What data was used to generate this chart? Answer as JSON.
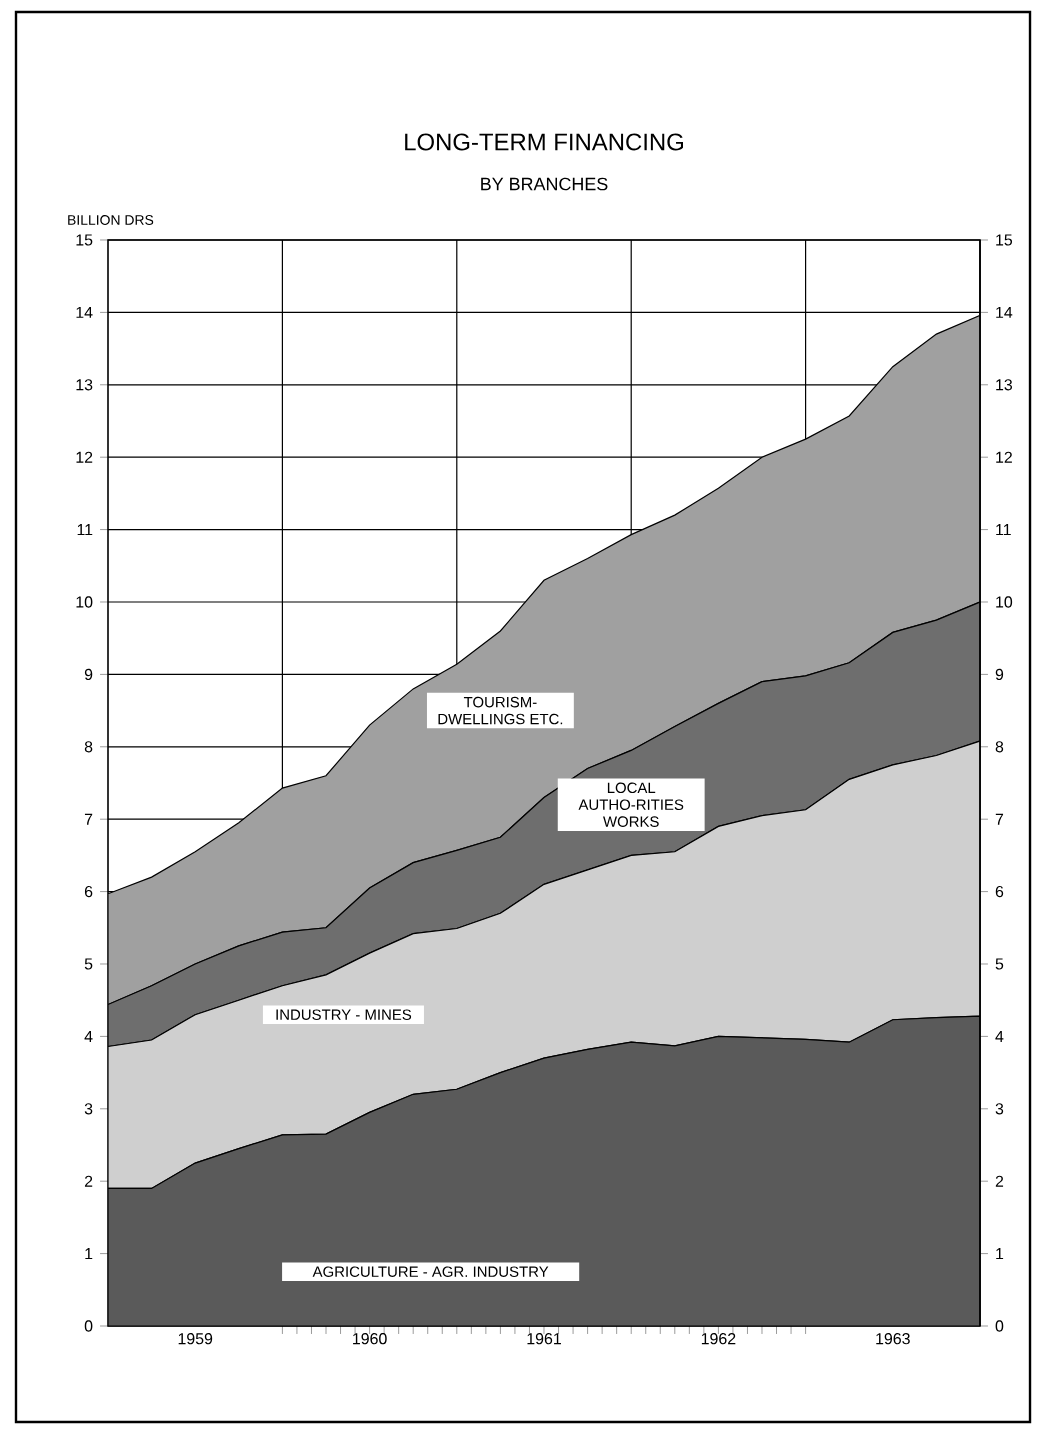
{
  "chart_data": {
    "type": "area",
    "title": "LONG-TERM FINANCING",
    "subtitle": "BY BRANCHES",
    "ylabel": "BILLION DRS",
    "stacked": true,
    "grid": true,
    "x": [
      1959.0,
      1959.25,
      1959.5,
      1959.75,
      1960.0,
      1960.25,
      1960.5,
      1960.75,
      1961.0,
      1961.25,
      1961.5,
      1961.75,
      1962.0,
      1962.25,
      1962.5,
      1962.75,
      1963.0,
      1963.25,
      1963.5,
      1963.75,
      1964.0
    ],
    "series": [
      {
        "name": "AGRICULTURE - AGR. INDUSTRY",
        "color": "#5a5a5a",
        "values": [
          1.9,
          1.9,
          2.25,
          2.45,
          2.64,
          2.65,
          2.95,
          3.2,
          3.27,
          3.5,
          3.7,
          3.82,
          3.92,
          3.87,
          4.0,
          3.98,
          3.96,
          3.92,
          4.23,
          4.26,
          4.28
        ]
      },
      {
        "name": "INDUSTRY - MINES",
        "color": "#cfcfcf",
        "values": [
          1.96,
          2.05,
          2.05,
          2.05,
          2.06,
          2.2,
          2.2,
          2.22,
          2.22,
          2.2,
          2.4,
          2.48,
          2.58,
          2.68,
          2.9,
          3.07,
          3.17,
          3.63,
          3.52,
          3.62,
          3.8
        ]
      },
      {
        "name": "LOCAL AUTHO-RITIES WORKS",
        "color": "#6e6e6e",
        "values": [
          0.58,
          0.75,
          0.7,
          0.75,
          0.74,
          0.65,
          0.9,
          0.98,
          1.08,
          1.05,
          1.2,
          1.4,
          1.45,
          1.73,
          1.7,
          1.85,
          1.85,
          1.61,
          1.83,
          1.87,
          1.92
        ]
      },
      {
        "name": "TOURISM-DWELLINGS ETC.",
        "color": "#a0a0a0",
        "values": [
          1.53,
          1.5,
          1.55,
          1.7,
          1.99,
          2.1,
          2.25,
          2.4,
          2.57,
          2.85,
          3.0,
          2.9,
          2.98,
          2.92,
          2.97,
          3.1,
          3.27,
          3.41,
          3.67,
          3.95,
          3.96
        ]
      }
    ],
    "xlim": [
      1959,
      1964
    ],
    "xticks": [
      {
        "value": 1959.5,
        "label": "1959"
      },
      {
        "value": 1960,
        "label": null
      },
      {
        "value": 1960.5,
        "label": "1960"
      },
      {
        "value": 1961,
        "label": null
      },
      {
        "value": 1961.5,
        "label": "1961"
      },
      {
        "value": 1962,
        "label": null
      },
      {
        "value": 1962.5,
        "label": "1962"
      },
      {
        "value": 1963,
        "label": null
      },
      {
        "value": 1963.5,
        "label": "1963"
      }
    ],
    "ylim": [
      0,
      15
    ],
    "yticks": [
      0,
      1,
      2,
      3,
      4,
      5,
      6,
      7,
      8,
      9,
      10,
      11,
      12,
      13,
      14,
      15
    ],
    "y2lim": [
      0,
      15
    ],
    "y2ticks": [
      0,
      1,
      2,
      3,
      4,
      5,
      6,
      7,
      8,
      9,
      10,
      11,
      12,
      13,
      14,
      15
    ]
  }
}
